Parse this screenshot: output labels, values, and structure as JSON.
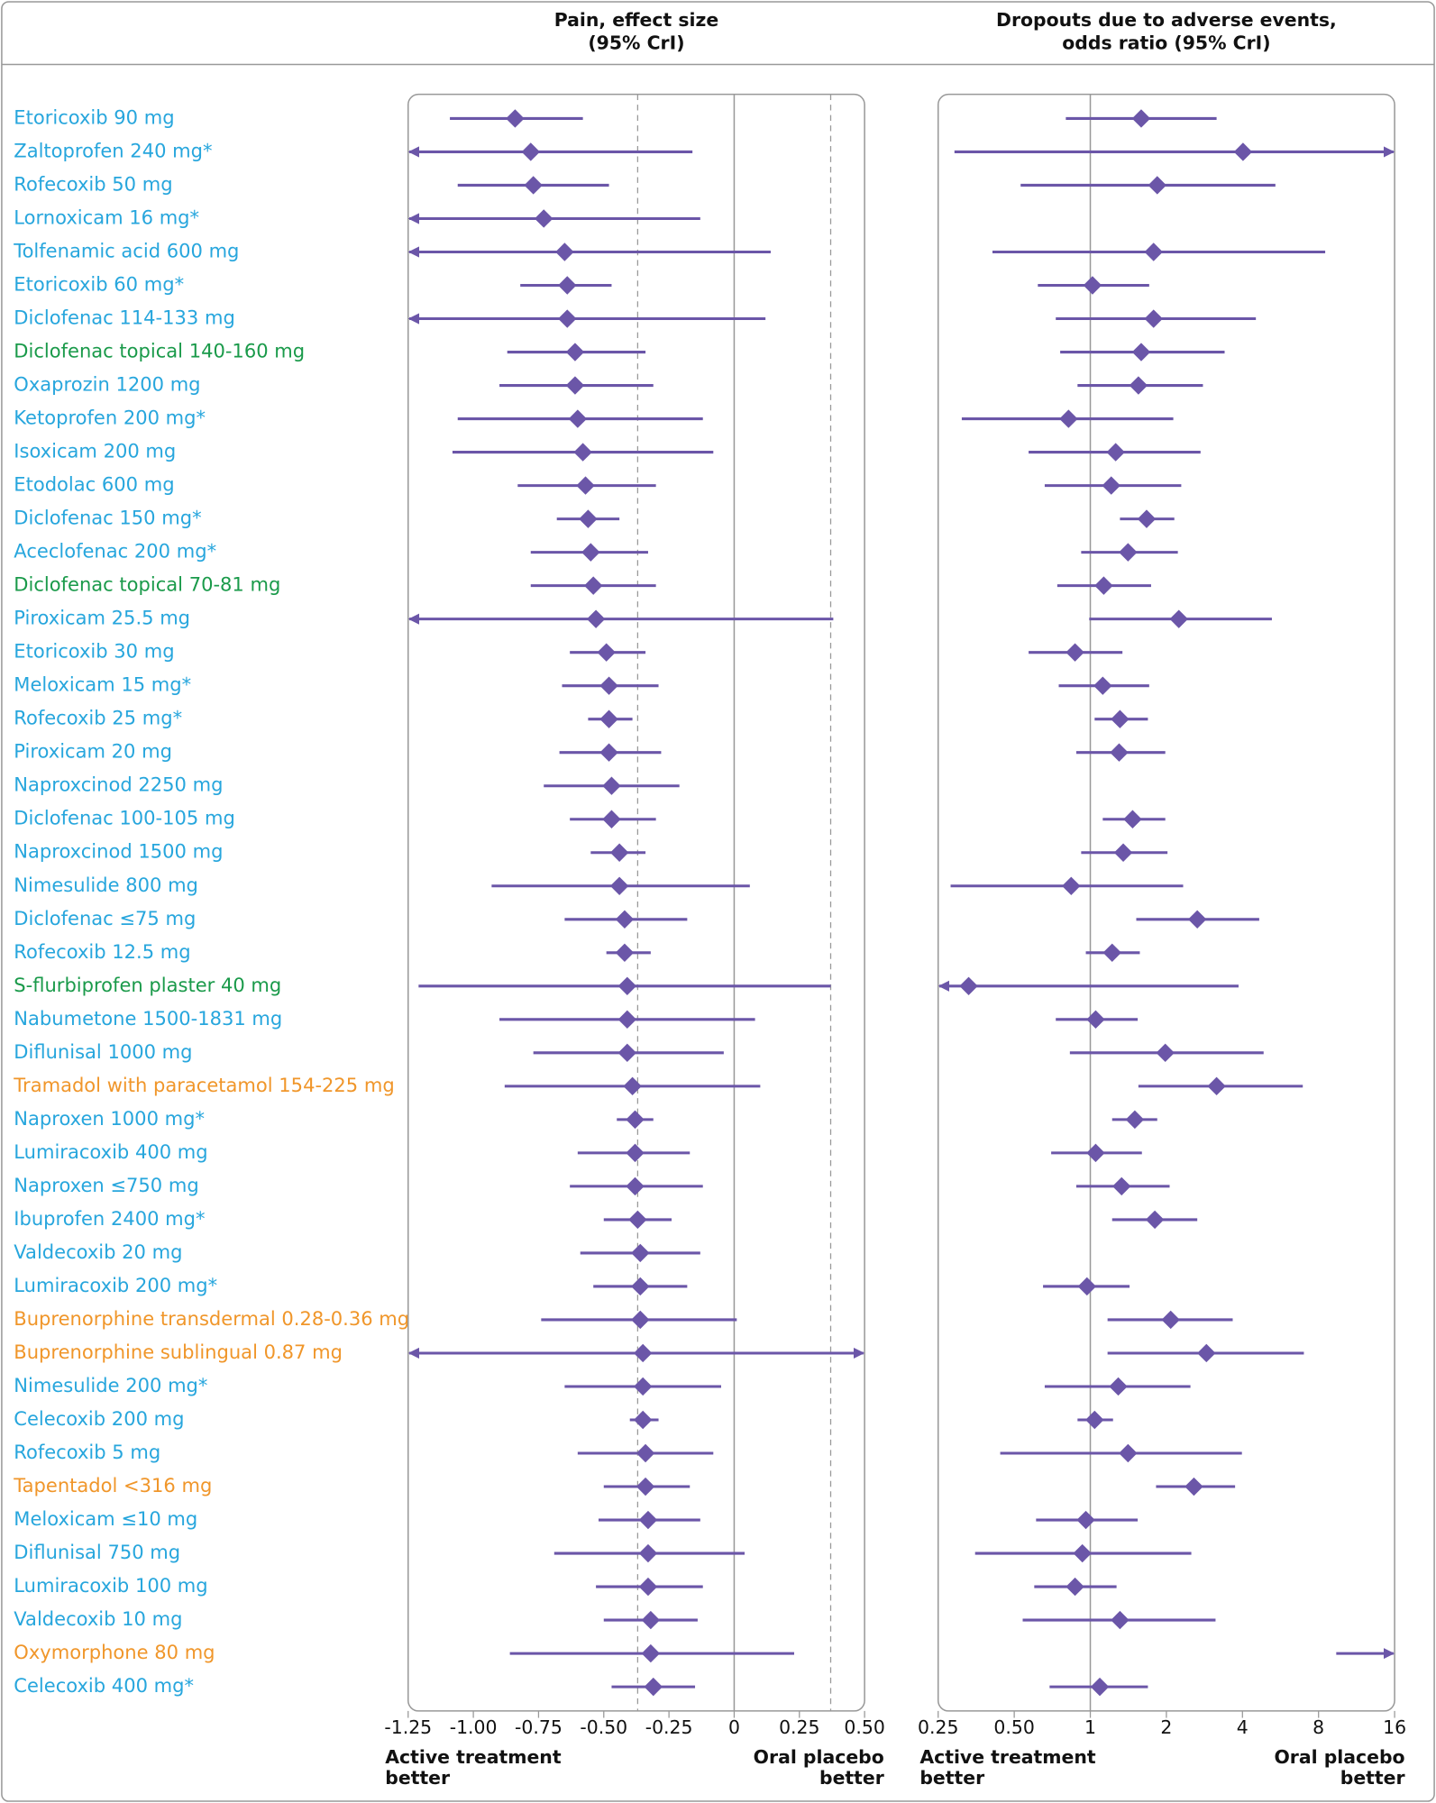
{
  "chart_data": [
    {
      "type": "forest",
      "title": [
        "Pain, effect size",
        "(95% CrI)"
      ],
      "annotations": {
        "left": [
          "Active treatment",
          "better"
        ],
        "right": [
          "Oral placebo",
          "better"
        ]
      },
      "categories": [
        "Etoricoxib 90 mg",
        "Zaltoprofen 240 mg*",
        "Rofecoxib 50 mg",
        "Lornoxicam 16 mg*",
        "Tolfenamic acid 600 mg",
        "Etoricoxib 60 mg*",
        "Diclofenac 114-133 mg",
        "Diclofenac topical 140-160 mg",
        "Oxaprozin 1200 mg",
        "Ketoprofen 200 mg*",
        "Isoxicam 200 mg",
        "Etodolac 600 mg",
        "Diclofenac 150 mg*",
        "Aceclofenac 200 mg*",
        "Diclofenac topical 70-81 mg",
        "Piroxicam 25.5 mg",
        "Etoricoxib 30 mg",
        "Meloxicam 15 mg*",
        "Rofecoxib 25 mg*",
        "Piroxicam 20 mg",
        "Naproxcinod 2250 mg",
        "Diclofenac 100-105 mg",
        "Naproxcinod 1500 mg",
        "Nimesulide 800 mg",
        "Diclofenac ≤75 mg",
        "Rofecoxib 12.5 mg",
        "S-flurbiprofen plaster 40 mg",
        "Nabumetone 1500-1831 mg",
        "Diflunisal 1000 mg",
        "Tramadol with paracetamol 154-225 mg",
        "Naproxen 1000 mg*",
        "Lumiracoxib 400 mg",
        "Naproxen ≤750 mg",
        "Ibuprofen 2400 mg*",
        "Valdecoxib 20 mg",
        "Lumiracoxib 200 mg*",
        "Buprenorphine transdermal 0.28-0.36 mg",
        "Buprenorphine sublingual 0.87 mg",
        "Nimesulide 200 mg*",
        "Celecoxib 200 mg",
        "Rofecoxib 5 mg",
        "Tapentadol <316 mg",
        "Meloxicam ≤10 mg",
        "Diflunisal 750 mg",
        "Lumiracoxib 100 mg",
        "Valdecoxib 10 mg",
        "Oxymorphone 80 mg",
        "Celecoxib 400 mg*"
      ],
      "category_colors": [
        "#27a6dd",
        "#27a6dd",
        "#27a6dd",
        "#27a6dd",
        "#27a6dd",
        "#27a6dd",
        "#27a6dd",
        "#1a9a4a",
        "#27a6dd",
        "#27a6dd",
        "#27a6dd",
        "#27a6dd",
        "#27a6dd",
        "#27a6dd",
        "#1a9a4a",
        "#27a6dd",
        "#27a6dd",
        "#27a6dd",
        "#27a6dd",
        "#27a6dd",
        "#27a6dd",
        "#27a6dd",
        "#27a6dd",
        "#27a6dd",
        "#27a6dd",
        "#27a6dd",
        "#1a9a4a",
        "#27a6dd",
        "#27a6dd",
        "#f0962a",
        "#27a6dd",
        "#27a6dd",
        "#27a6dd",
        "#27a6dd",
        "#27a6dd",
        "#27a6dd",
        "#f0962a",
        "#f0962a",
        "#27a6dd",
        "#27a6dd",
        "#27a6dd",
        "#f0962a",
        "#27a6dd",
        "#27a6dd",
        "#27a6dd",
        "#27a6dd",
        "#f0962a",
        "#27a6dd"
      ],
      "values": [
        -0.84,
        -0.78,
        -0.77,
        -0.73,
        -0.65,
        -0.64,
        -0.64,
        -0.61,
        -0.61,
        -0.6,
        -0.58,
        -0.57,
        -0.56,
        -0.55,
        -0.54,
        -0.53,
        -0.49,
        -0.48,
        -0.48,
        -0.48,
        -0.47,
        -0.47,
        -0.44,
        -0.44,
        -0.42,
        -0.42,
        -0.41,
        -0.41,
        -0.41,
        -0.39,
        -0.38,
        -0.38,
        -0.38,
        -0.37,
        -0.36,
        -0.36,
        -0.36,
        -0.35,
        -0.35,
        -0.35,
        -0.34,
        -0.34,
        -0.33,
        -0.33,
        -0.33,
        -0.32,
        -0.32,
        -0.31
      ],
      "lower": [
        -1.09,
        null,
        -1.06,
        null,
        null,
        -0.82,
        null,
        -0.87,
        -0.9,
        -1.06,
        -1.08,
        -0.83,
        -0.68,
        -0.78,
        -0.78,
        null,
        -0.63,
        -0.66,
        -0.56,
        -0.67,
        -0.73,
        -0.63,
        -0.55,
        -0.93,
        -0.65,
        -0.49,
        -1.21,
        -0.9,
        -0.77,
        -0.88,
        -0.45,
        -0.6,
        -0.63,
        -0.5,
        -0.59,
        -0.54,
        -0.74,
        null,
        -0.65,
        -0.4,
        -0.6,
        -0.5,
        -0.52,
        -0.69,
        -0.53,
        -0.5,
        -0.86,
        -0.47
      ],
      "upper": [
        -0.58,
        -0.16,
        -0.48,
        -0.13,
        0.14,
        -0.47,
        0.12,
        -0.34,
        -0.31,
        -0.12,
        -0.08,
        -0.3,
        -0.44,
        -0.33,
        -0.3,
        0.38,
        -0.34,
        -0.29,
        -0.39,
        -0.28,
        -0.21,
        -0.3,
        -0.34,
        0.06,
        -0.18,
        -0.32,
        0.37,
        0.08,
        -0.04,
        0.1,
        -0.31,
        -0.17,
        -0.12,
        -0.24,
        -0.13,
        -0.18,
        0.01,
        null,
        -0.05,
        -0.29,
        -0.08,
        -0.17,
        -0.13,
        0.04,
        -0.12,
        -0.14,
        0.23,
        -0.15
      ],
      "color": "#6b56a8",
      "xlim": [
        -1.25,
        0.5
      ],
      "xticks": [
        -1.25,
        {
          "value": -1,
          "label": "-1.00"
        },
        -0.75,
        {
          "value": -0.5,
          "label": "-0.50"
        },
        -0.25,
        0,
        0.25,
        {
          "value": 0.5,
          "label": "0.50"
        }
      ],
      "null_line": 0,
      "dashed_lines": [
        -0.37,
        0.37
      ]
    },
    {
      "type": "forest",
      "title": [
        "Dropouts due to adverse events,",
        "odds ratio (95% CrI)"
      ],
      "annotations": {
        "left": [
          "Active treatment",
          "better"
        ],
        "right": [
          "Oral placebo",
          "better"
        ]
      },
      "log_scale": true,
      "values": [
        1.59,
        4.02,
        1.84,
        null,
        1.78,
        1.02,
        1.78,
        1.59,
        1.55,
        0.82,
        1.26,
        1.21,
        1.67,
        1.41,
        1.13,
        2.24,
        0.87,
        1.12,
        1.31,
        1.3,
        null,
        1.47,
        1.35,
        0.84,
        2.65,
        1.22,
        0.33,
        1.05,
        1.98,
        3.16,
        1.5,
        1.05,
        1.33,
        1.8,
        null,
        0.97,
        2.08,
        2.88,
        1.29,
        1.04,
        1.41,
        2.57,
        0.96,
        0.93,
        0.87,
        1.31,
        null,
        1.09
      ],
      "lower": [
        0.8,
        0.29,
        0.53,
        null,
        0.41,
        0.62,
        0.73,
        0.76,
        0.89,
        0.31,
        0.57,
        0.66,
        1.31,
        0.92,
        0.74,
        0.99,
        0.57,
        0.75,
        1.04,
        0.88,
        null,
        1.12,
        0.92,
        0.28,
        1.52,
        0.96,
        null,
        0.73,
        0.83,
        1.55,
        1.22,
        0.7,
        0.88,
        1.22,
        null,
        0.65,
        1.17,
        1.17,
        0.66,
        0.89,
        0.44,
        1.82,
        0.61,
        0.35,
        0.6,
        0.54,
        9.4,
        0.69
      ],
      "upper": [
        3.16,
        null,
        5.4,
        null,
        8.5,
        1.71,
        4.52,
        3.4,
        2.79,
        2.13,
        2.73,
        2.29,
        2.15,
        2.22,
        1.74,
        5.23,
        1.34,
        1.71,
        1.69,
        1.98,
        null,
        1.98,
        2.02,
        2.33,
        4.66,
        1.57,
        3.86,
        1.54,
        4.85,
        6.93,
        1.84,
        1.6,
        2.06,
        2.65,
        null,
        1.43,
        3.66,
        7.0,
        2.49,
        1.23,
        3.98,
        3.74,
        1.54,
        2.51,
        1.27,
        3.13,
        null,
        1.69
      ],
      "color": "#6b56a8",
      "xlim": [
        0.25,
        16
      ],
      "xticks": [
        0.25,
        {
          "value": 0.5,
          "label": "0.50"
        },
        1,
        2,
        4,
        8,
        16
      ],
      "null_line": 1
    }
  ]
}
